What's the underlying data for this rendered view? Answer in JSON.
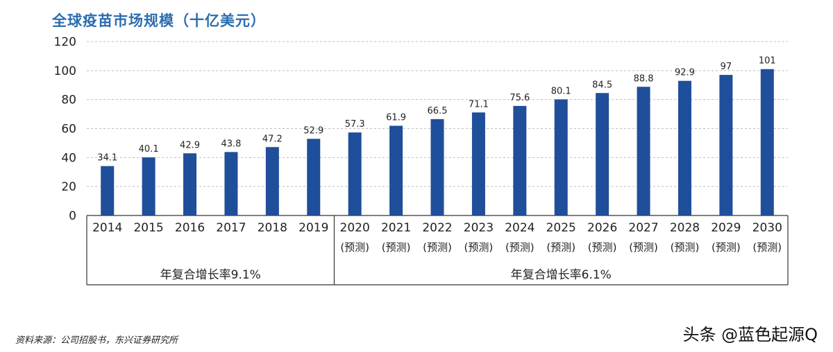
{
  "title": "全球疫苗市场规模（十亿美元）",
  "source": "资料来源：公司招股书，东兴证券研究所",
  "watermark": "头条 @蓝色起源Q",
  "colors": {
    "bar": "#1f4e9a",
    "grid": "#bdbdbd",
    "title": "#2a6db0",
    "text": "#222222"
  },
  "chart_data": {
    "type": "bar",
    "title": "全球疫苗市场规模（十亿美元）",
    "categories": [
      "2014",
      "2015",
      "2016",
      "2017",
      "2018",
      "2019",
      "2020",
      "2021",
      "2022",
      "2023",
      "2024",
      "2025",
      "2026",
      "2027",
      "2028",
      "2029",
      "2030"
    ],
    "values": [
      34.1,
      40.1,
      42.9,
      43.8,
      47.2,
      52.9,
      57.3,
      61.9,
      66.5,
      71.1,
      75.6,
      80.1,
      84.5,
      88.8,
      92.9,
      97,
      101
    ],
    "value_labels": [
      "34.1",
      "40.1",
      "42.9",
      "43.8",
      "47.2",
      "52.9",
      "57.3",
      "61.9",
      "66.5",
      "71.1",
      "75.6",
      "80.1",
      "84.5",
      "88.8",
      "92.9",
      "97",
      "101"
    ],
    "forecast_tag": "(预测)",
    "forecast_start_index": 6,
    "ylim": [
      0,
      120
    ],
    "yticks": [
      0,
      20,
      40,
      60,
      80,
      100,
      120
    ],
    "grid": true,
    "groups": [
      {
        "label": "年复合增长率9.1%",
        "from": 0,
        "to": 5
      },
      {
        "label": "年复合增长率6.1%",
        "from": 6,
        "to": 16
      }
    ]
  }
}
